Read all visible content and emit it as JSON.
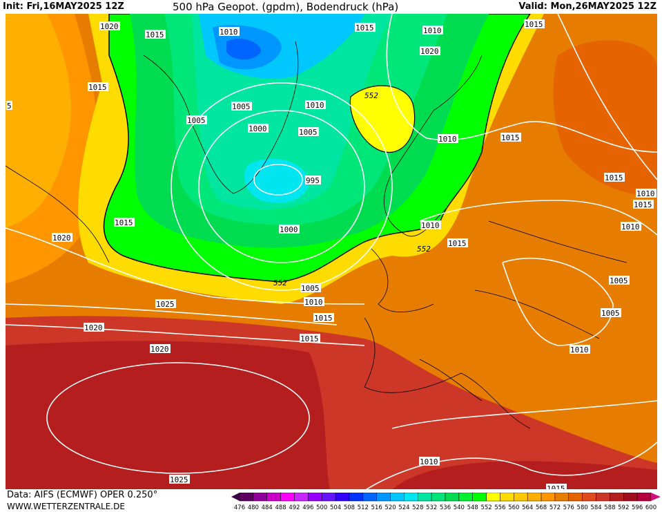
{
  "header": {
    "init": "Init: Fri,16MAY2025 12Z",
    "title": "500 hPa Geopot. (gpdm), Bodendruck (hPa)",
    "valid": "Valid: Mon,26MAY2025 12Z"
  },
  "footer": {
    "source": "Data: AIFS (ECMWF) OPER 0.250°",
    "website": "WWW.WETTERZENTRALE.DE"
  },
  "legend": {
    "labels": [
      "476",
      "480",
      "484",
      "488",
      "492",
      "496",
      "500",
      "504",
      "508",
      "512",
      "516",
      "520",
      "524",
      "528",
      "532",
      "536",
      "540",
      "548",
      "552",
      "556",
      "560",
      "564",
      "568",
      "572",
      "576",
      "580",
      "584",
      "588",
      "592",
      "596",
      "600"
    ],
    "below_color": "#3c0044",
    "above_color": "#d0107a",
    "colors": [
      "#5c0060",
      "#90009a",
      "#c800c8",
      "#ff00ff",
      "#c828ff",
      "#9600ff",
      "#6414ff",
      "#3200ff",
      "#0032ff",
      "#0064ff",
      "#0096ff",
      "#00c8ff",
      "#00e6f0",
      "#00e6a0",
      "#00e678",
      "#00dc50",
      "#00f032",
      "#00ff00",
      "#ffff00",
      "#ffdc00",
      "#ffc800",
      "#ffaf00",
      "#ff9600",
      "#e67d00",
      "#e66400",
      "#e14b1e",
      "#cd3728",
      "#b41e1e",
      "#a00f1e",
      "#b4003c"
    ]
  },
  "map": {
    "contour_552_label": "552",
    "isobar_labels": [
      "1020",
      "1015",
      "1010",
      "1015",
      "1010",
      "1015",
      "1020",
      "1015",
      "1005",
      "1005",
      "1010",
      "1000",
      "1005",
      "1010",
      "1015",
      "995",
      "1015",
      "1020",
      "1000",
      "1010",
      "1015",
      "552",
      "1005",
      "1010",
      "1015",
      "1020",
      "1015",
      "1020",
      "1025",
      "1025",
      "1015",
      "1010",
      "1015",
      "1010",
      "1010",
      "1005",
      "1005",
      "1010",
      "1015",
      "552",
      "5"
    ]
  }
}
